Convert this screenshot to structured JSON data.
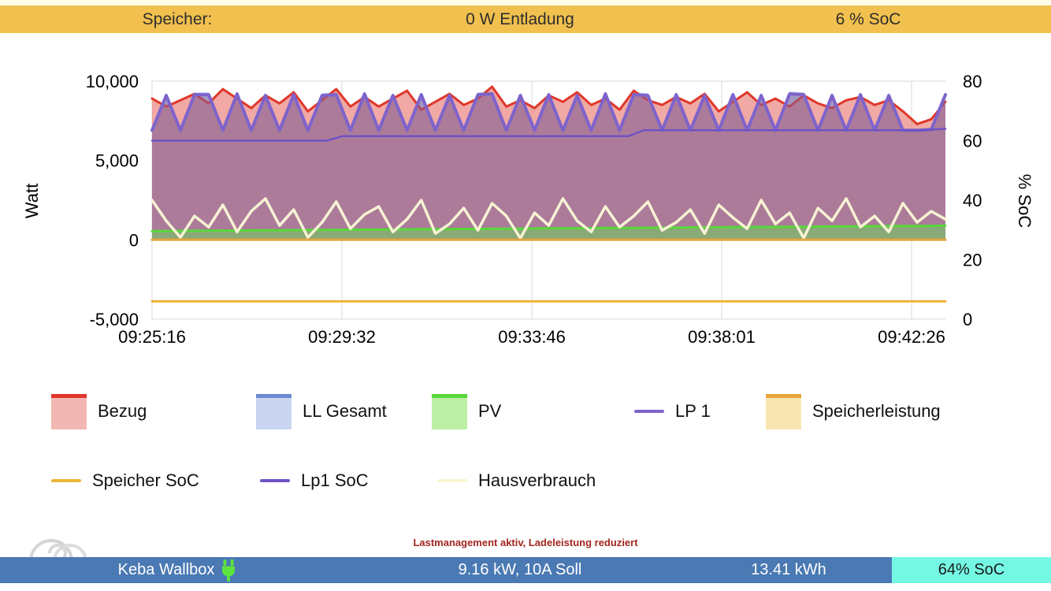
{
  "page": {
    "top_strip_color": "#fffde6"
  },
  "status_bar_top": {
    "bg": "#f1c04e",
    "label": "Speicher:",
    "power": "0 W Entladung",
    "soc": "6 % SoC"
  },
  "chart_data": {
    "type": "area",
    "title": "",
    "grid": true,
    "x_axis": {
      "ticks": [
        {
          "label": "09:25:16",
          "f": 0.0
        },
        {
          "label": "09:29:32",
          "f": 0.2393
        },
        {
          "label": "09:33:46",
          "f": 0.4787
        },
        {
          "label": "09:38:01",
          "f": 0.718
        },
        {
          "label": "09:42:26",
          "f": 0.9573
        }
      ]
    },
    "y_left": {
      "label": "Watt",
      "min": -5000,
      "max": 10000,
      "tick_labels": [
        "10,000",
        "5,000",
        "0",
        "-5,000"
      ],
      "tick_values": [
        10000,
        5000,
        0,
        -5000
      ]
    },
    "y_right": {
      "label": "% SoC",
      "min": 0,
      "max": 80,
      "tick_labels": [
        "80",
        "60",
        "40",
        "20",
        "0"
      ],
      "tick_values": [
        80,
        60,
        40,
        20,
        0
      ]
    },
    "series": [
      {
        "name": "LL Gesamt",
        "type": "area",
        "axis": "left",
        "stroke": "none",
        "fill": "#c7d3f0",
        "width": 0,
        "values": [
          7000,
          9250,
          7000,
          9300,
          9300,
          7000,
          9350,
          7000,
          9250,
          7000,
          9300,
          7000,
          9250,
          9300,
          7000,
          9350,
          7000,
          9250,
          7000,
          9300,
          7000,
          9250,
          7000,
          9300,
          9350,
          7000,
          9250,
          7000,
          9300,
          7000,
          9250,
          7000,
          9350,
          7000,
          9300,
          9250,
          7000,
          9300,
          7000,
          9250,
          7000,
          9300,
          7000,
          9250,
          7000,
          9350,
          9300,
          7000,
          9250,
          7000,
          9300,
          7000,
          9250,
          7000,
          7000,
          7050,
          9250
        ]
      },
      {
        "name": "Bezug",
        "type": "area",
        "axis": "left",
        "stroke": "#df372a",
        "fill": "rgba(231,112,105,0.6)",
        "width": 3,
        "values": [
          8900,
          8400,
          8800,
          9200,
          8600,
          9500,
          8900,
          8300,
          9100,
          8600,
          9300,
          8100,
          8800,
          9500,
          8400,
          9000,
          8400,
          8900,
          9400,
          8200,
          8700,
          9200,
          8500,
          8900,
          9650,
          8400,
          8800,
          8300,
          9100,
          8700,
          9300,
          8500,
          8900,
          8200,
          9400,
          8800,
          8500,
          9000,
          8600,
          9200,
          8100,
          8700,
          9300,
          8500,
          8900,
          8400,
          9100,
          8600,
          8300,
          8800,
          9000,
          8500,
          8800,
          8100,
          7300,
          7600,
          8700
        ]
      },
      {
        "name": "LP 1",
        "type": "area",
        "axis": "left",
        "stroke": "#7e63cc",
        "fill": "rgba(125,95,150,0.5)",
        "width": 4,
        "values": [
          6900,
          9100,
          6900,
          9150,
          9150,
          6900,
          9200,
          6900,
          9100,
          6900,
          9150,
          6900,
          9100,
          9150,
          6900,
          9200,
          6900,
          9100,
          6900,
          9150,
          6900,
          9100,
          6900,
          9150,
          9200,
          6900,
          9100,
          6900,
          9150,
          6900,
          9100,
          6900,
          9200,
          6900,
          9150,
          9100,
          6900,
          9150,
          6900,
          9100,
          6900,
          9150,
          6900,
          9100,
          6900,
          9200,
          9150,
          6900,
          9100,
          6900,
          9150,
          6900,
          9100,
          6900,
          6900,
          6950,
          9150
        ]
      },
      {
        "name": "PV",
        "type": "area",
        "axis": "left",
        "stroke": "#58d73a",
        "fill": "#8aa978",
        "width": 3,
        "values": [
          550,
          556,
          562,
          568,
          574,
          580,
          586,
          593,
          599,
          605,
          611,
          617,
          623,
          629,
          635,
          641,
          647,
          653,
          659,
          665,
          671,
          677,
          683,
          689,
          695,
          701,
          707,
          714,
          720,
          726,
          732,
          738,
          744,
          750,
          756,
          762,
          768,
          774,
          780,
          786,
          792,
          798,
          804,
          810,
          816,
          822,
          828,
          835,
          841,
          847,
          853,
          859,
          865,
          871,
          877,
          883,
          890
        ]
      },
      {
        "name": "Hausverbrauch",
        "type": "line",
        "axis": "left",
        "stroke": "#f7f3d4",
        "width": 3.5,
        "values": [
          2500,
          1200,
          150,
          1500,
          800,
          2200,
          500,
          1800,
          2600,
          900,
          1900,
          150,
          1100,
          2400,
          700,
          1600,
          2100,
          500,
          1300,
          2500,
          400,
          1000,
          2000,
          600,
          2300,
          1500,
          100,
          1700,
          900,
          2600,
          1200,
          500,
          2100,
          800,
          1500,
          2400,
          600,
          1100,
          1900,
          400,
          2200,
          1400,
          700,
          2500,
          1000,
          1700,
          100,
          2000,
          1200,
          2600,
          800,
          1500,
          500,
          2300,
          1100,
          1800,
          1300
        ]
      },
      {
        "name": "Speicherleistung",
        "type": "line",
        "axis": "left",
        "stroke": "#e6a53c",
        "width": 3,
        "const": 0
      },
      {
        "name": "Speicher SoC",
        "type": "line",
        "axis": "right",
        "stroke": "#ecb43c",
        "width": 3,
        "const": 6
      },
      {
        "name": "Lp1 SoC",
        "type": "line",
        "axis": "right",
        "stroke": "#6f52c4",
        "width": 2.5,
        "points": [
          [
            0,
            60
          ],
          [
            0.22,
            60
          ],
          [
            0.24,
            61.5
          ],
          [
            0.6,
            61.5
          ],
          [
            0.62,
            63.5
          ],
          [
            0.97,
            63.5
          ],
          [
            1,
            64
          ]
        ]
      }
    ]
  },
  "legend": {
    "rows": [
      [
        {
          "label": "Bezug",
          "swatch": "area",
          "stroke": "#df372a",
          "fill": "#f3b7b3"
        },
        {
          "label": "LL Gesamt",
          "swatch": "area",
          "stroke": "#6b8ad2",
          "fill": "#c9d5f1"
        },
        {
          "label": "PV",
          "swatch": "area",
          "stroke": "#58d73a",
          "fill": "#bdf0a6"
        },
        {
          "label": "LP 1",
          "swatch": "line",
          "stroke": "#7e63cc"
        },
        {
          "label": "Speicherleistung",
          "swatch": "area",
          "stroke": "#e6a53c",
          "fill": "#f8e5b0"
        }
      ],
      [
        {
          "label": "Speicher SoC",
          "swatch": "line",
          "stroke": "#ecb43c"
        },
        {
          "label": "Lp1 SoC",
          "swatch": "line",
          "stroke": "#6f52c4"
        },
        {
          "label": "Hausverbrauch",
          "swatch": "line",
          "stroke": "#f9f5cf"
        }
      ]
    ]
  },
  "alert": {
    "text": "Lastmanagement aktiv, Ladeleistung reduziert",
    "color": "#a3251f"
  },
  "status_bar_bottom": {
    "bg": "#4a79b3",
    "name": "Keba Wallbox",
    "plug_color": "#5ce53c",
    "power": "9.16 kW, 10A Soll",
    "energy": "13.41 kWh",
    "soc": "64% SoC",
    "soc_bg": "#74f8e4",
    "soc_text_color": "#1a1a1a"
  }
}
